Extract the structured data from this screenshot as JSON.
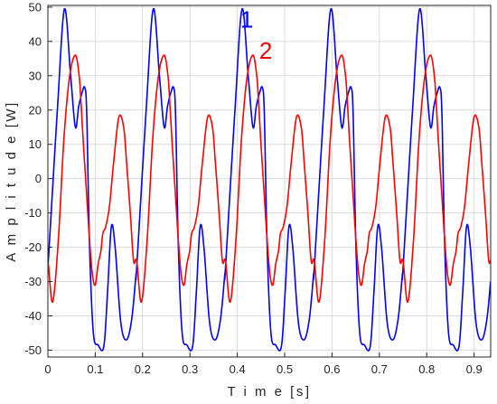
{
  "chart_data": {
    "type": "line",
    "title": "",
    "xlabel": "T i m e [s]",
    "ylabel": "A m p l i t u d e [W]",
    "xlim": [
      0,
      0.935
    ],
    "ylim": [
      -52,
      50.5
    ],
    "grid": true,
    "x_ticks": [
      0,
      0.1,
      0.2,
      0.3,
      0.4,
      0.5,
      0.6,
      0.7,
      0.8,
      0.9
    ],
    "x_tick_labels": [
      "0",
      "0.1",
      "0.2",
      "0.3",
      "0.4",
      "0.5",
      "0.6",
      "0.7",
      "0.8",
      "0.9"
    ],
    "y_ticks": [
      -50,
      -40,
      -30,
      -20,
      -10,
      0,
      10,
      20,
      30,
      40,
      50
    ],
    "y_tick_labels": [
      "-50",
      "-40",
      "-30",
      "-20",
      "-10",
      "0",
      "10",
      "20",
      "30",
      "40",
      "50"
    ],
    "series": [
      {
        "label": "1",
        "color": "#0000ff",
        "period": 0.1875,
        "x": [
          0,
          0.02,
          0.035,
          0.048,
          0.058,
          0.065,
          0.072,
          0.078,
          0.082,
          0.088,
          0.096,
          0.106,
          0.118,
          0.126,
          0.134,
          0.142,
          0.154,
          0.166,
          0.177,
          0.186,
          0.1875
        ],
        "y": [
          -26,
          20,
          49.5,
          30,
          15,
          21,
          25,
          26.5,
          19,
          -20,
          -45,
          -48.5,
          -49,
          -33,
          -14,
          -20,
          -42,
          -47,
          -41,
          -28,
          -25
        ]
      },
      {
        "label": "2",
        "color": "#ff0000",
        "period": 0.1875,
        "x": [
          0,
          0.01,
          0.022,
          0.034,
          0.046,
          0.058,
          0.066,
          0.07,
          0.075,
          0.082,
          0.088,
          0.094,
          0.1,
          0.106,
          0.112,
          0.116,
          0.122,
          0.13,
          0.139,
          0.15,
          0.16,
          0.166,
          0.174,
          0.181,
          0.1875
        ],
        "y": [
          -24,
          -36,
          -18,
          12,
          30,
          36,
          30,
          22,
          10,
          -5,
          -18,
          -28,
          -31,
          -25,
          -21,
          -16,
          -14,
          -8,
          5,
          18,
          15,
          5,
          -10,
          -24,
          -24
        ]
      }
    ],
    "annotations": [
      {
        "text": "1",
        "color": "#0000ff",
        "x": 0.42,
        "y": 44
      },
      {
        "text": "2",
        "color": "#ff0000",
        "x": 0.46,
        "y": 35
      }
    ]
  }
}
